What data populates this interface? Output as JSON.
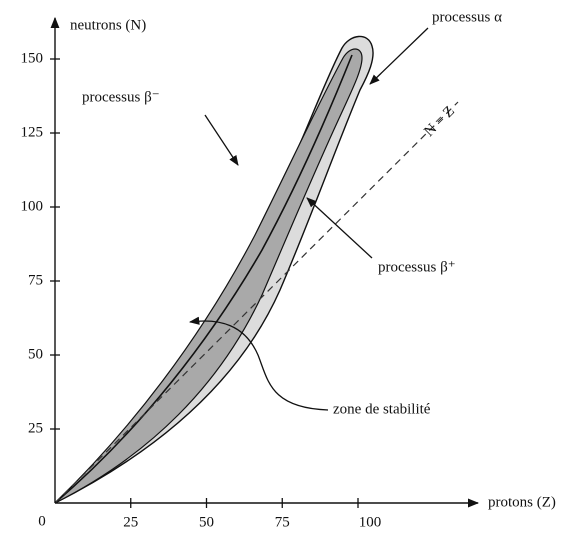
{
  "axes": {
    "x_label": "protons (Z)",
    "y_label": "neutrons (N)",
    "origin_label": "0",
    "xticks": [
      25,
      50,
      75,
      100
    ],
    "yticks": [
      25,
      50,
      75,
      100,
      125,
      150
    ]
  },
  "annotations": {
    "alpha": "processus α",
    "beta_minus": "processus β⁻",
    "beta_plus": "processus β⁺",
    "stability": "zone de stabilité",
    "n_equals_z": "N = Z"
  }
}
